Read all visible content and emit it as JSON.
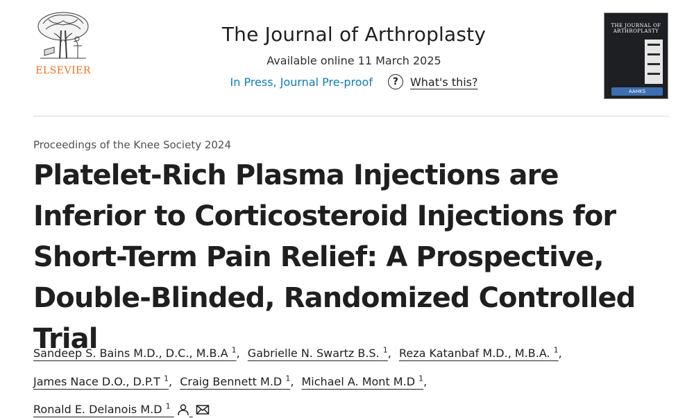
{
  "publisher": {
    "name": "ELSEVIER",
    "logo_icon": "tree-logo-icon",
    "brand_color": "#e9711c"
  },
  "journal": {
    "title": "The Journal of Arthroplasty",
    "available": "Available online 11 March 2025",
    "status": "In Press, Journal Pre-proof",
    "help_label": "What's this?",
    "help_icon": "help-icon",
    "link_color": "#0c7dbb"
  },
  "cover": {
    "title": "THE JOURNAL OF ARTHROPLASTY",
    "society": "AAHKS"
  },
  "article": {
    "section": "Proceedings of the Knee Society 2024",
    "title": "Platelet-Rich Plasma Injections are Inferior to Corticosteroid Injections for Short-Term Pain Relief: A Prospective, Double-Blinded, Randomized Controlled Trial"
  },
  "authors": [
    {
      "name": "Sandeep S. Bains M.D., D.C., M.B.A",
      "aff": "1"
    },
    {
      "name": "Gabrielle N. Swartz B.S.",
      "aff": "1"
    },
    {
      "name": "Reza Katanbaf M.D., M.B.A.",
      "aff": "1"
    },
    {
      "name": "James Nace D.O., D.P.T",
      "aff": "1"
    },
    {
      "name": "Craig Bennett M.D",
      "aff": "1"
    },
    {
      "name": "Michael A. Mont M.D",
      "aff": "1"
    },
    {
      "name": "Ronald E. Delanois M.D",
      "aff": "1"
    }
  ],
  "icons": {
    "person": "person-icon",
    "email": "email-icon"
  }
}
